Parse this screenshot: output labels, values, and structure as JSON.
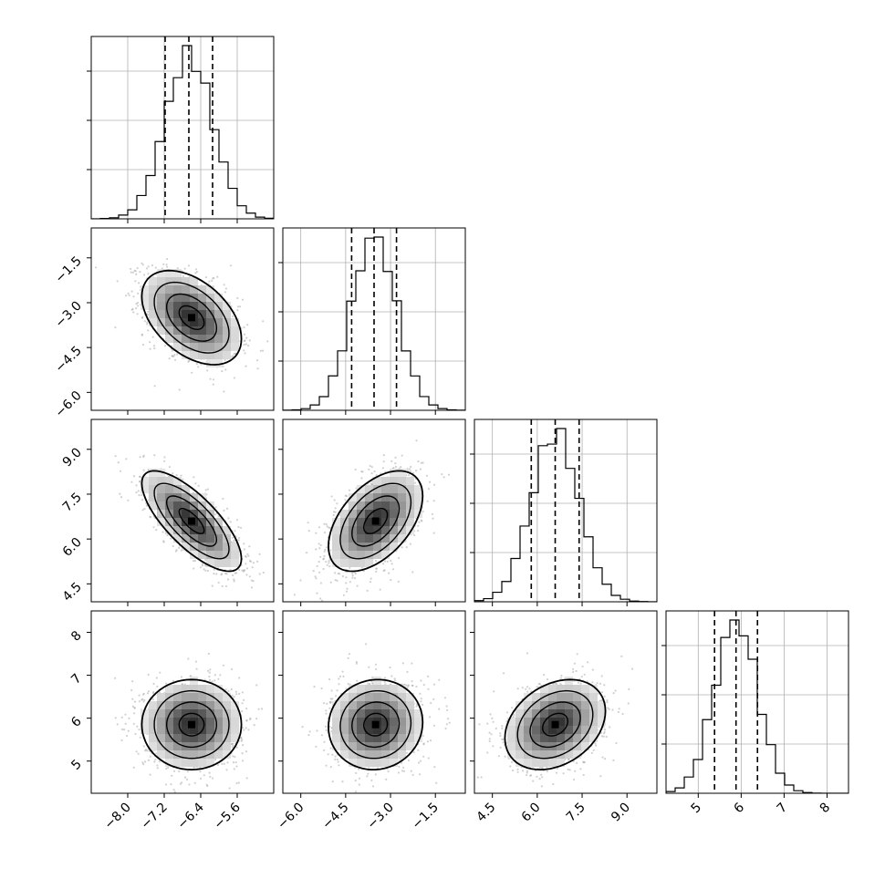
{
  "chart_data": {
    "type": "corner",
    "parameters": [
      {
        "index": 0,
        "xlim": [
          -8.8,
          -4.8
        ],
        "ticks": [
          "-8.0",
          "-7.2",
          "-6.4",
          "-5.6"
        ],
        "tick_values": [
          -8.0,
          -7.2,
          -6.4,
          -5.6
        ],
        "quantiles": [
          -7.18,
          -6.66,
          -6.14
        ]
      },
      {
        "index": 1,
        "xlim": [
          -6.6,
          -0.5
        ],
        "ticks": [
          "-6.0",
          "-4.5",
          "-3.0",
          "-1.5"
        ],
        "tick_values": [
          -6.0,
          -4.5,
          -3.0,
          -1.5
        ],
        "quantiles": [
          -4.3,
          -3.55,
          -2.8
        ]
      },
      {
        "index": 2,
        "xlim": [
          3.9,
          10.0
        ],
        "ticks": [
          "4.5",
          "6.0",
          "7.5",
          "9.0"
        ],
        "tick_values": [
          4.5,
          6.0,
          7.5,
          9.0
        ],
        "quantiles": [
          5.8,
          6.6,
          7.4
        ]
      },
      {
        "index": 3,
        "xlim": [
          4.25,
          8.5
        ],
        "ticks": [
          "5",
          "6",
          "7",
          "8"
        ],
        "tick_values": [
          5,
          6,
          7,
          8
        ],
        "quantiles": [
          5.38,
          5.88,
          6.38
        ]
      }
    ],
    "pairs": [
      {
        "x": 0,
        "y": 1,
        "center": [
          -6.6,
          -3.5
        ],
        "correlation": -0.45
      },
      {
        "x": 0,
        "y": 2,
        "center": [
          -6.6,
          6.6
        ],
        "correlation": -0.75
      },
      {
        "x": 1,
        "y": 2,
        "center": [
          -3.5,
          6.6
        ],
        "correlation": 0.5
      },
      {
        "x": 0,
        "y": 3,
        "center": [
          -6.6,
          5.85
        ],
        "correlation": 0.0
      },
      {
        "x": 1,
        "y": 3,
        "center": [
          -3.5,
          5.85
        ],
        "correlation": 0.05
      },
      {
        "x": 2,
        "y": 3,
        "center": [
          6.6,
          5.85
        ],
        "correlation": 0.3
      }
    ],
    "histogram_bins": 20,
    "grid": true,
    "legend": "none"
  }
}
